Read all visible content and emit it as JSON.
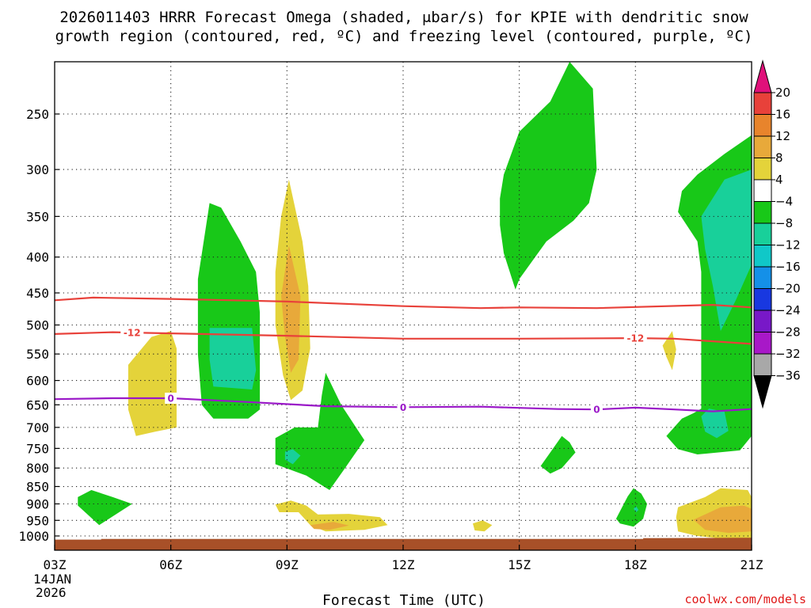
{
  "chart_data": {
    "type": "time-height cross section",
    "title_line1": "2026011403 HRRR Forecast Omega (shaded, μbar/s) for KPIE with dendritic snow",
    "title_line2": "growth region (contoured, red, ºC) and freezing level (contoured, purple, ºC)",
    "xlabel": "Forecast Time (UTC)",
    "x_ticks": [
      "03Z",
      "06Z",
      "09Z",
      "12Z",
      "15Z",
      "18Z",
      "21Z"
    ],
    "x_tick_hours": [
      3,
      6,
      9,
      12,
      15,
      18,
      21
    ],
    "date_line1": "14JAN",
    "date_line2": "2026",
    "xlim": [
      3,
      21
    ],
    "y_ticks": [
      250,
      300,
      350,
      400,
      450,
      500,
      550,
      600,
      650,
      700,
      750,
      800,
      850,
      900,
      950,
      1000
    ],
    "y_tick_labels": [
      "250",
      "300",
      "350",
      "400",
      "450",
      "500",
      "550",
      "600",
      "650",
      "700",
      "750",
      "800",
      "850",
      "900",
      "950",
      "1000"
    ],
    "ylim_hpa": [
      200,
      1030
    ],
    "colorbar": {
      "labels": [
        "20",
        "16",
        "12",
        "8",
        "4",
        "−4",
        "−8",
        "−12",
        "−16",
        "−20",
        "−24",
        "−28",
        "−32",
        "−36"
      ],
      "values": [
        20,
        16,
        12,
        8,
        4,
        -4,
        -8,
        -12,
        -16,
        -20,
        -24,
        -28,
        -32,
        -36
      ],
      "segments": [
        {
          "from": 20,
          "to": 16,
          "color": "#e8413a"
        },
        {
          "from": 16,
          "to": 12,
          "color": "#e8842c"
        },
        {
          "from": 12,
          "to": 8,
          "color": "#e8a93a"
        },
        {
          "from": 8,
          "to": 4,
          "color": "#e4d33a"
        },
        {
          "from": 4,
          "to": -4,
          "color": "#ffffff"
        },
        {
          "from": -4,
          "to": -8,
          "color": "#18c818"
        },
        {
          "from": -8,
          "to": -12,
          "color": "#18d09a"
        },
        {
          "from": -12,
          "to": -16,
          "color": "#10c8c8"
        },
        {
          "from": -16,
          "to": -20,
          "color": "#1490e8"
        },
        {
          "from": -20,
          "to": -24,
          "color": "#1838e0"
        },
        {
          "from": -24,
          "to": -28,
          "color": "#7818c8"
        },
        {
          "from": -28,
          "to": -32,
          "color": "#a818c8"
        },
        {
          "from": -32,
          "to": -36,
          "color": "#a8a8a8"
        }
      ],
      "over_color": "#e0107a",
      "under_color": "#000000"
    },
    "palette": {
      "neg4": "#18c818",
      "neg8": "#18d09a",
      "neg12": "#10c8c8",
      "pos4": "#e4d33a",
      "pos8": "#e8a93a",
      "pos12": "#e8842c",
      "snow_contour": "#e8413a",
      "freezing_contour": "#9a18c8",
      "terrain": "#a85028"
    },
    "contours": [
      {
        "name": "dgz-upper",
        "value": "",
        "color": "#e8413a",
        "points": [
          [
            3,
            461
          ],
          [
            4,
            457
          ],
          [
            6,
            459
          ],
          [
            9,
            463
          ],
          [
            12,
            470
          ],
          [
            14,
            473
          ],
          [
            15,
            472
          ],
          [
            17,
            473
          ],
          [
            20,
            468
          ],
          [
            21,
            472
          ]
        ]
      },
      {
        "name": "dgz-lower-m12",
        "value": "-12",
        "color": "#e8413a",
        "points": [
          [
            3,
            515
          ],
          [
            4.5,
            512
          ],
          [
            6,
            514
          ],
          [
            9,
            518
          ],
          [
            12,
            523
          ],
          [
            15,
            523
          ],
          [
            18,
            522
          ],
          [
            19,
            523
          ],
          [
            21,
            532
          ]
        ],
        "label_at": [
          [
            5,
            513
          ],
          [
            18,
            521
          ]
        ]
      },
      {
        "name": "freezing-level-0",
        "value": "0",
        "color": "#9a18c8",
        "points": [
          [
            3,
            638
          ],
          [
            4.5,
            636
          ],
          [
            6,
            636
          ],
          [
            8,
            644
          ],
          [
            10,
            653
          ],
          [
            12,
            655
          ],
          [
            14,
            654
          ],
          [
            16,
            659
          ],
          [
            17,
            660
          ],
          [
            18,
            656
          ],
          [
            19,
            660
          ],
          [
            20,
            664
          ],
          [
            21,
            659
          ]
        ],
        "label_at": [
          [
            6,
            636
          ],
          [
            12,
            655
          ],
          [
            17,
            660
          ]
        ]
      }
    ],
    "omega_regions": [
      {
        "name": "neg4-0645-0830",
        "color_key": "neg4",
        "points": [
          [
            6.7,
            430
          ],
          [
            7,
            335
          ],
          [
            7.3,
            340
          ],
          [
            7.8,
            380
          ],
          [
            8.2,
            420
          ],
          [
            8.3,
            480
          ],
          [
            8.3,
            660
          ],
          [
            8,
            680
          ],
          [
            7.1,
            680
          ],
          [
            6.8,
            650
          ],
          [
            6.7,
            550
          ]
        ]
      },
      {
        "name": "neg8-0700-0815",
        "color_key": "neg8",
        "points": [
          [
            7,
            505
          ],
          [
            8.1,
            505
          ],
          [
            8.2,
            580
          ],
          [
            8.1,
            618
          ],
          [
            7.1,
            612
          ],
          [
            7,
            560
          ]
        ]
      },
      {
        "name": "pos4-0840-0940",
        "color_key": "pos4",
        "points": [
          [
            8.7,
            420
          ],
          [
            8.85,
            350
          ],
          [
            9.05,
            310
          ],
          [
            9.4,
            380
          ],
          [
            9.55,
            440
          ],
          [
            9.6,
            540
          ],
          [
            9.4,
            620
          ],
          [
            9.1,
            640
          ],
          [
            8.9,
            590
          ],
          [
            8.7,
            500
          ]
        ]
      },
      {
        "name": "pos8-0850-0935",
        "color_key": "pos8",
        "points": [
          [
            8.85,
            455
          ],
          [
            9.05,
            385
          ],
          [
            9.35,
            455
          ],
          [
            9.3,
            560
          ],
          [
            9.1,
            585
          ],
          [
            8.95,
            520
          ]
        ]
      },
      {
        "name": "pos4-0450-0610",
        "color_key": "pos4",
        "points": [
          [
            4.9,
            570
          ],
          [
            5.5,
            520
          ],
          [
            6,
            510
          ],
          [
            6.15,
            540
          ],
          [
            6.15,
            700
          ],
          [
            5.6,
            710
          ],
          [
            5.1,
            720
          ],
          [
            4.9,
            660
          ]
        ]
      },
      {
        "name": "neg4-0840-1100",
        "color_key": "neg4",
        "points": [
          [
            8.7,
            725
          ],
          [
            9.2,
            700
          ],
          [
            9.8,
            700
          ],
          [
            9.9,
            630
          ],
          [
            10,
            585
          ],
          [
            10.4,
            650
          ],
          [
            11,
            730
          ],
          [
            10.5,
            800
          ],
          [
            10.1,
            860
          ],
          [
            9.5,
            820
          ],
          [
            8.7,
            790
          ]
        ]
      },
      {
        "name": "neg8-0855-0920",
        "color_key": "neg8",
        "points": [
          [
            8.95,
            758
          ],
          [
            9.15,
            752
          ],
          [
            9.35,
            768
          ],
          [
            9.15,
            790
          ],
          [
            8.95,
            778
          ]
        ]
      },
      {
        "name": "neg4-0340-0500",
        "color_key": "neg4",
        "points": [
          [
            3.6,
            880
          ],
          [
            3.95,
            860
          ],
          [
            4.5,
            880
          ],
          [
            5,
            900
          ],
          [
            4.6,
            930
          ],
          [
            4.15,
            965
          ],
          [
            3.6,
            905
          ]
        ]
      },
      {
        "name": "pos4-0840-1140",
        "color_key": "pos4",
        "points": [
          [
            8.7,
            902
          ],
          [
            9.1,
            890
          ],
          [
            9.5,
            905
          ],
          [
            9.8,
            932
          ],
          [
            10.6,
            930
          ],
          [
            11.4,
            940
          ],
          [
            11.6,
            965
          ],
          [
            11,
            980
          ],
          [
            10,
            985
          ],
          [
            9.6,
            965
          ],
          [
            9.3,
            925
          ],
          [
            8.8,
            925
          ]
        ]
      },
      {
        "name": "pos8-0940-1030",
        "color_key": "pos8",
        "points": [
          [
            9.6,
            965
          ],
          [
            10.2,
            955
          ],
          [
            10.6,
            966
          ],
          [
            10.1,
            980
          ],
          [
            9.7,
            977
          ]
        ]
      },
      {
        "name": "pos4-1350-1420",
        "color_key": "pos4",
        "points": [
          [
            13.8,
            960
          ],
          [
            14.05,
            950
          ],
          [
            14.3,
            965
          ],
          [
            14.1,
            985
          ],
          [
            13.85,
            982
          ]
        ]
      },
      {
        "name": "neg4-1430-1710",
        "color_key": "neg4",
        "points": [
          [
            14.5,
            330
          ],
          [
            14.6,
            305
          ],
          [
            15,
            265
          ],
          [
            15.8,
            240
          ],
          [
            16.3,
            195
          ],
          [
            16.9,
            230
          ],
          [
            17,
            300
          ],
          [
            16.8,
            335
          ],
          [
            16.4,
            355
          ],
          [
            15.7,
            380
          ],
          [
            15,
            430
          ],
          [
            14.9,
            445
          ],
          [
            14.6,
            395
          ],
          [
            14.5,
            360
          ]
        ]
      },
      {
        "name": "neg4-1540-1630",
        "color_key": "neg4",
        "points": [
          [
            15.55,
            795
          ],
          [
            15.8,
            760
          ],
          [
            16.1,
            720
          ],
          [
            16.3,
            735
          ],
          [
            16.45,
            760
          ],
          [
            16.1,
            800
          ],
          [
            15.8,
            815
          ]
        ]
      },
      {
        "name": "neg4-1740-1820",
        "color_key": "neg4",
        "points": [
          [
            17.5,
            945
          ],
          [
            17.8,
            878
          ],
          [
            17.95,
            855
          ],
          [
            18.15,
            870
          ],
          [
            18.3,
            900
          ],
          [
            18.2,
            945
          ],
          [
            17.95,
            970
          ],
          [
            17.6,
            960
          ]
        ]
      },
      {
        "name": "neg8-1755-1805",
        "color_key": "neg8",
        "points": [
          [
            17.95,
            915
          ],
          [
            18.02,
            907
          ],
          [
            18.08,
            918
          ],
          [
            18.02,
            925
          ]
        ]
      },
      {
        "name": "pos4-1850-1905",
        "color_key": "pos4",
        "points": [
          [
            18.7,
            535
          ],
          [
            18.95,
            510
          ],
          [
            19.05,
            542
          ],
          [
            18.95,
            580
          ],
          [
            18.8,
            555
          ]
        ]
      },
      {
        "name": "neg4-1900-2100",
        "color_key": "neg4",
        "points": [
          [
            18.8,
            720
          ],
          [
            19.2,
            680
          ],
          [
            19.5,
            668
          ],
          [
            19.7,
            658
          ],
          [
            19.7,
            420
          ],
          [
            19.6,
            380
          ],
          [
            19.1,
            345
          ],
          [
            19.2,
            322
          ],
          [
            19.6,
            305
          ],
          [
            20.3,
            285
          ],
          [
            21,
            268
          ],
          [
            21,
            720
          ],
          [
            20.7,
            755
          ],
          [
            19.6,
            765
          ],
          [
            19.1,
            752
          ]
        ]
      },
      {
        "name": "neg8-1940-2100",
        "color_key": "neg8",
        "points": [
          [
            19.7,
            350
          ],
          [
            20.3,
            310
          ],
          [
            21,
            300
          ],
          [
            21,
            410
          ],
          [
            20.6,
            460
          ],
          [
            20.2,
            510
          ],
          [
            20,
            440
          ],
          [
            19.8,
            390
          ]
        ]
      },
      {
        "name": "neg8-1940-2025",
        "color_key": "neg8",
        "points": [
          [
            19.7,
            675
          ],
          [
            19.9,
            658
          ],
          [
            20.3,
            665
          ],
          [
            20.4,
            708
          ],
          [
            20.1,
            725
          ],
          [
            19.8,
            710
          ]
        ]
      },
      {
        "name": "pos4-1900-2100",
        "color_key": "pos4",
        "points": [
          [
            19.05,
            940
          ],
          [
            19.1,
            910
          ],
          [
            19.8,
            880
          ],
          [
            20.2,
            855
          ],
          [
            20.9,
            860
          ],
          [
            21,
            880
          ],
          [
            21,
            1010
          ],
          [
            20.3,
            1010
          ],
          [
            19.6,
            1000
          ],
          [
            19.1,
            985
          ]
        ]
      },
      {
        "name": "pos8-1950-2100",
        "color_key": "pos8",
        "points": [
          [
            19.5,
            948
          ],
          [
            20.2,
            910
          ],
          [
            20.8,
            905
          ],
          [
            21,
            915
          ],
          [
            21,
            985
          ],
          [
            20.4,
            990
          ],
          [
            19.8,
            980
          ]
        ]
      }
    ],
    "terrain": {
      "color_key": "terrain",
      "points": [
        [
          3,
          1012
        ],
        [
          4.2,
          1012
        ],
        [
          4.2,
          1010
        ],
        [
          18.2,
          1010
        ],
        [
          18.2,
          1007
        ],
        [
          21,
          1006
        ]
      ]
    }
  },
  "footer": {
    "credit": "coolwx.com/models"
  }
}
